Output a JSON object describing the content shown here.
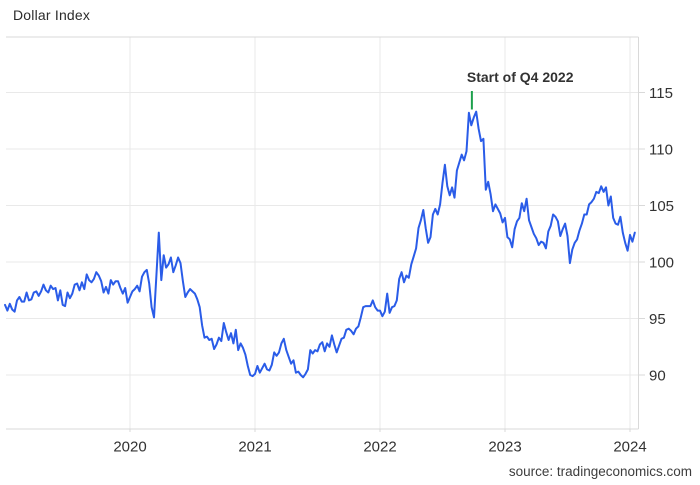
{
  "page": {
    "title": "Dollar Index",
    "source": "source: tradingeconomics.com"
  },
  "chart_data": {
    "type": "line",
    "title": "Dollar Index",
    "series_name": "US Dollar Index",
    "xlabel": "",
    "ylabel": "",
    "x_tick_labels": [
      "2020",
      "2021",
      "2022",
      "2023",
      "2024"
    ],
    "y_ticks": [
      90,
      95,
      100,
      105,
      110,
      115
    ],
    "ylim": [
      85,
      120
    ],
    "xlim": [
      2019.0,
      2024.07
    ],
    "grid": true,
    "legend": "none",
    "line_color": "#2a5ce8",
    "grid_color": "#e9e9e9",
    "frame_color": "#d9d9d9",
    "annotation": {
      "label": "Start of Q4 2022",
      "x_year": 2022.735,
      "color": "#1da04c"
    },
    "points_per_year": 52,
    "values_by_year": {
      "2019": [
        96.2,
        95.7,
        96.3,
        95.8,
        95.6,
        96.6,
        96.9,
        96.5,
        96.5,
        97.3,
        96.6,
        96.7,
        97.3,
        97.4,
        97.0,
        97.4,
        98.0,
        97.5,
        97.3,
        97.9,
        97.6,
        97.7,
        96.6,
        97.5,
        96.2,
        96.1,
        97.3,
        96.8,
        97.2,
        98.0,
        98.1,
        97.5,
        98.2,
        97.6,
        98.9,
        98.4,
        98.2,
        98.5,
        99.1,
        98.8,
        98.3,
        97.3,
        97.8,
        97.2,
        98.4,
        98.0,
        98.3,
        98.3,
        97.7,
        97.2,
        97.7,
        96.4
      ],
      "2020": [
        96.9,
        97.4,
        97.6,
        97.9,
        97.4,
        98.7,
        99.1,
        99.3,
        98.1,
        96.0,
        95.1,
        98.8,
        102.6,
        98.4,
        100.6,
        99.5,
        99.8,
        100.4,
        99.1,
        99.7,
        100.4,
        99.9,
        98.3,
        96.9,
        97.3,
        97.6,
        97.4,
        97.2,
        96.7,
        96.0,
        94.4,
        93.3,
        93.4,
        93.1,
        93.2,
        92.3,
        92.7,
        93.3,
        93.0,
        94.6,
        93.8,
        93.1,
        93.7,
        92.8,
        94.0,
        92.2,
        92.8,
        92.4,
        91.8,
        90.8,
        90.0,
        89.9
      ],
      "2021": [
        90.1,
        90.8,
        90.2,
        90.6,
        91.0,
        90.5,
        90.4,
        90.9,
        92.0,
        91.7,
        92.0,
        92.8,
        93.2,
        92.2,
        91.6,
        91.0,
        91.3,
        90.2,
        90.3,
        90.0,
        89.8,
        90.1,
        90.5,
        92.2,
        91.9,
        92.2,
        92.1,
        92.7,
        92.9,
        92.1,
        92.8,
        92.5,
        93.5,
        92.7,
        92.0,
        92.6,
        93.2,
        93.3,
        94.0,
        94.1,
        93.9,
        93.6,
        94.1,
        94.3,
        95.1,
        96.0,
        96.1,
        96.1,
        96.1,
        96.6,
        96.0,
        95.7
      ],
      "2022": [
        95.7,
        95.2,
        95.6,
        97.2,
        95.5,
        96.0,
        96.1,
        96.6,
        98.5,
        99.1,
        98.2,
        98.8,
        98.6,
        99.8,
        100.5,
        101.2,
        103.0,
        103.7,
        104.6,
        103.0,
        101.7,
        102.2,
        104.2,
        104.7,
        104.2,
        105.1,
        107.0,
        108.6,
        106.7,
        105.9,
        106.6,
        105.7,
        108.1,
        108.8,
        109.5,
        109.0,
        109.8,
        113.2,
        112.1,
        112.8,
        113.3,
        111.8,
        110.7,
        110.9,
        106.4,
        107.1,
        106.0,
        104.5,
        105.1,
        104.7,
        104.3,
        103.5
      ],
      "2023": [
        103.9,
        102.2,
        102.0,
        101.3,
        102.9,
        103.6,
        103.9,
        105.2,
        104.5,
        105.6,
        103.7,
        103.1,
        102.5,
        102.1,
        101.5,
        101.8,
        101.7,
        101.2,
        102.7,
        103.2,
        104.2,
        104.0,
        103.6,
        102.3,
        102.9,
        103.4,
        102.3,
        99.9,
        101.1,
        101.7,
        102.0,
        102.8,
        103.4,
        104.2,
        104.2,
        105.1,
        105.3,
        105.6,
        106.2,
        106.1,
        106.7,
        106.2,
        106.6,
        105.0,
        105.8,
        103.9,
        103.4,
        103.3,
        104.0,
        102.6,
        101.7,
        101.0
      ],
      "2024": [
        102.4,
        101.8,
        102.6
      ]
    }
  }
}
